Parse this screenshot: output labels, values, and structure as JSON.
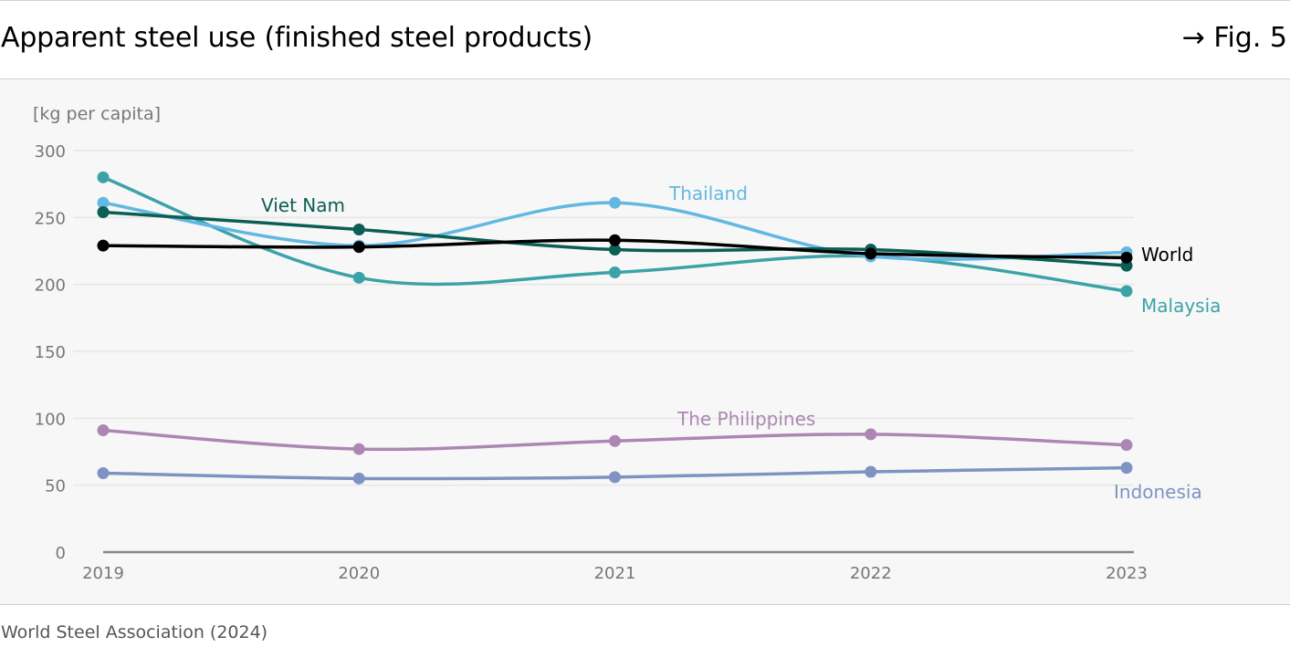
{
  "header": {
    "title": "Apparent steel use (finished steel products)",
    "figref": "→ Fig. 5"
  },
  "source": "World Steel Association (2024)",
  "colors": {
    "background": "#f7f7f7",
    "grid": "#e6e6e6",
    "axis": "#888888"
  },
  "chart_data": {
    "type": "line",
    "title": "Apparent steel use (finished steel products)",
    "ylabel": "[kg per capita]",
    "xlabel": "",
    "x": [
      "2019",
      "2020",
      "2021",
      "2022",
      "2023"
    ],
    "ylim": [
      0,
      300
    ],
    "yticks": [
      "0",
      "50",
      "100",
      "150",
      "200",
      "250",
      "300"
    ],
    "grid": true,
    "series": [
      {
        "name": "Indonesia",
        "color": "#7e93c3",
        "values": [
          59,
          55,
          56,
          60,
          63
        ]
      },
      {
        "name": "The Philippines",
        "color": "#ad86b4",
        "values": [
          91,
          77,
          83,
          88,
          80
        ]
      },
      {
        "name": "Malaysia",
        "color": "#3ba3a8",
        "values": [
          280,
          205,
          209,
          221,
          195
        ]
      },
      {
        "name": "Thailand",
        "color": "#62b8e2",
        "values": [
          261,
          229,
          261,
          221,
          224
        ]
      },
      {
        "name": "Viet Nam",
        "color": "#0b5e54",
        "values": [
          254,
          241,
          226,
          226,
          214
        ]
      },
      {
        "name": "World",
        "color": "#000000",
        "values": [
          229,
          228,
          233,
          223,
          220
        ]
      }
    ]
  }
}
